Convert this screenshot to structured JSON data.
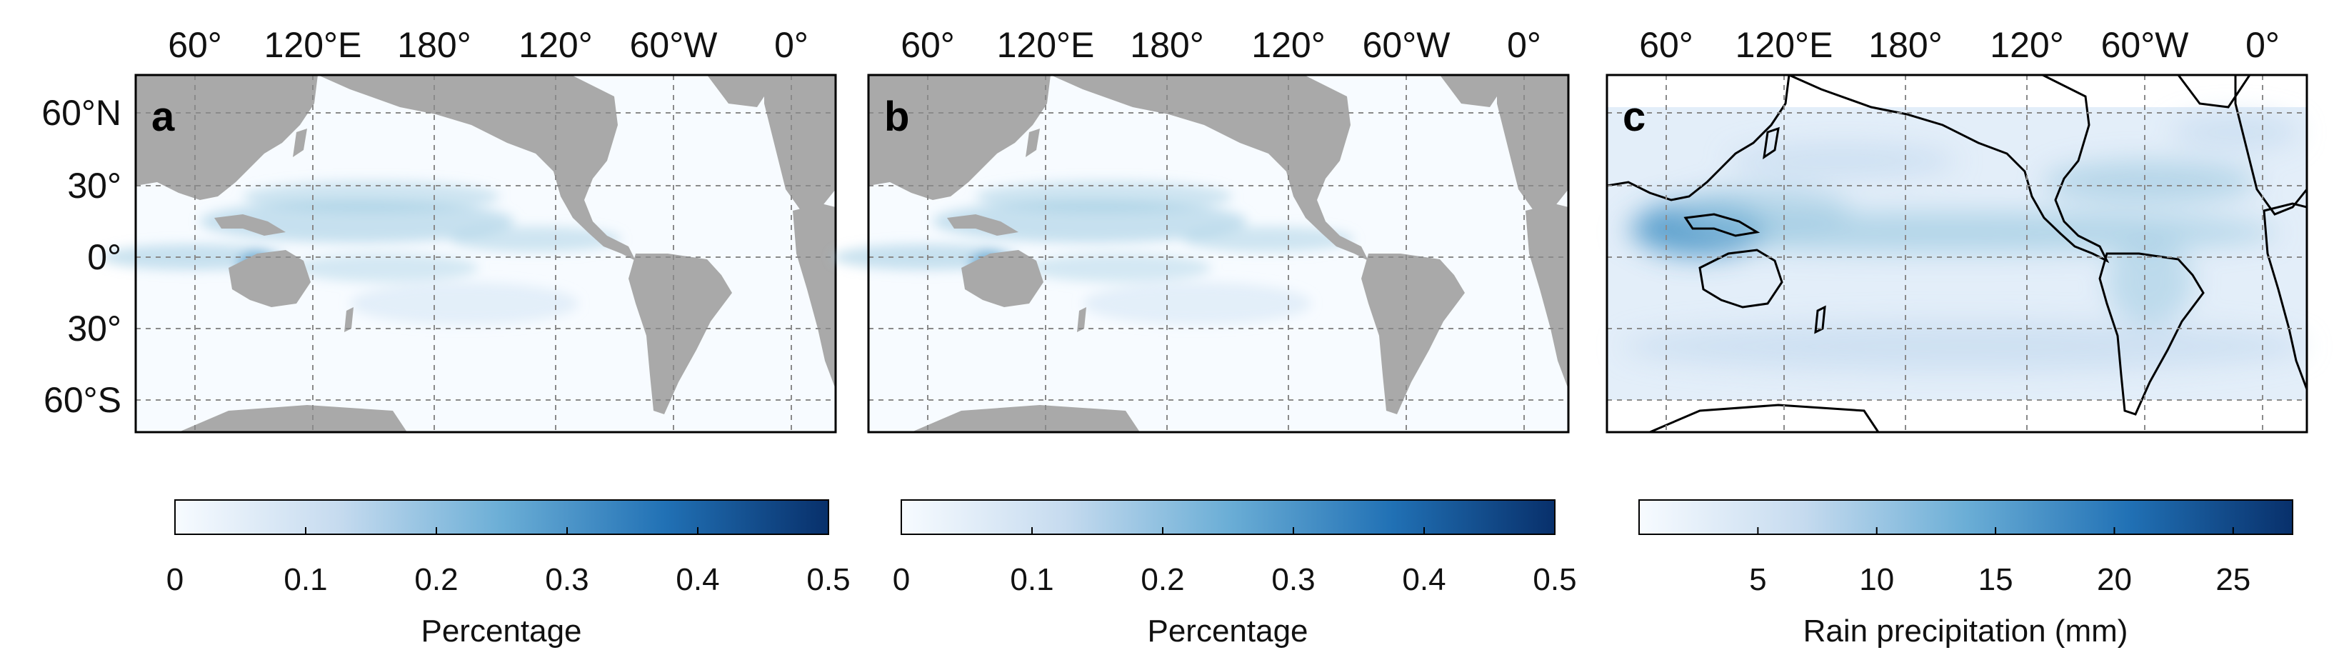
{
  "top_lon_ticks": [
    "60°",
    "120°E",
    "180°",
    "120°",
    "60°W",
    "0°"
  ],
  "lat_ticks": [
    "60°N",
    "30°",
    "0°",
    "30°",
    "60°S"
  ],
  "panels": [
    {
      "letter": "a",
      "outline_style": "filled-land",
      "colorbar": {
        "label": "Percentage",
        "ticks": [
          "0",
          "0.1",
          "0.2",
          "0.3",
          "0.4",
          "0.5"
        ],
        "min": 0,
        "max": 0.5
      }
    },
    {
      "letter": "b",
      "outline_style": "filled-land",
      "colorbar": {
        "label": "Percentage",
        "ticks": [
          "0",
          "0.1",
          "0.2",
          "0.3",
          "0.4",
          "0.5"
        ],
        "min": 0,
        "max": 0.5
      }
    },
    {
      "letter": "c",
      "outline_style": "coastline",
      "colorbar": {
        "label": "Rain precipitation (mm)",
        "ticks": [
          "5",
          "10",
          "15",
          "20",
          "25"
        ],
        "min": 0,
        "max": 27.5
      }
    }
  ],
  "colors": {
    "land": "#a9a9a9",
    "ocean": "#f7fbff",
    "colormap_low": "#f7fbff",
    "colormap_high": "#08306b",
    "coastline": "#000000"
  }
}
